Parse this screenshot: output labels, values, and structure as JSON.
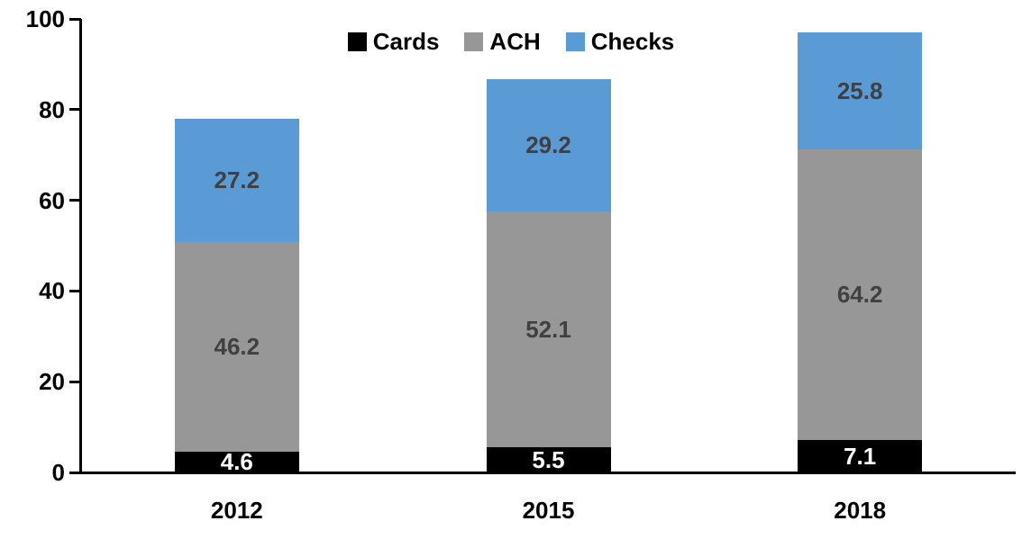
{
  "chart_data": {
    "type": "bar",
    "stacked": true,
    "title": "",
    "categories": [
      "2012",
      "2015",
      "2018"
    ],
    "series": [
      {
        "name": "Cards",
        "color": "#000000",
        "label_color": "#FFFFFF",
        "values": [
          4.6,
          5.5,
          7.1
        ]
      },
      {
        "name": "ACH",
        "color": "#979797",
        "label_color": "#404040",
        "values": [
          46.2,
          52.1,
          64.2
        ]
      },
      {
        "name": "Checks",
        "color": "#5B9BD5",
        "label_color": "#404040",
        "values": [
          27.2,
          29.2,
          25.8
        ]
      }
    ],
    "ylim": [
      0,
      100
    ],
    "yticks": [
      0,
      20,
      40,
      60,
      80,
      100
    ],
    "xlabel": "",
    "ylabel": "",
    "grid": false,
    "legend": {
      "position": "top",
      "entries": [
        "Cards",
        "ACH",
        "Checks"
      ]
    },
    "axis_color": "#000000",
    "background": "#FFFFFF"
  }
}
